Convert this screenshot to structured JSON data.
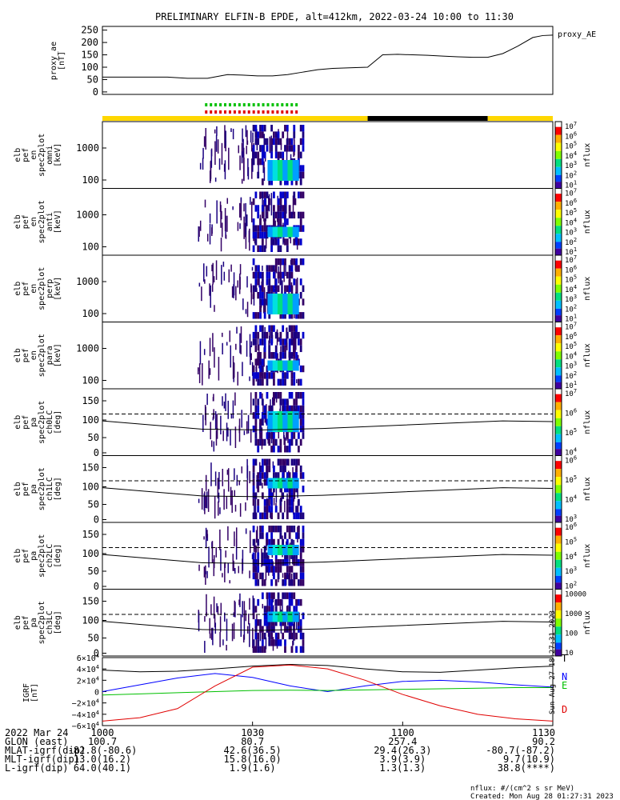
{
  "title": "PRELIMINARY ELFIN-B EPDE, alt=412km, 2022-03-24 10:00 to 11:30",
  "colors": {
    "black": "#000000",
    "blue": "#0000ff",
    "green": "#00c000",
    "red": "#e00000",
    "yellow": "#ffd700",
    "orbit_black": "#000000"
  },
  "time_axis": {
    "tick_labels": [
      "1000",
      "1030",
      "1100",
      "1130"
    ],
    "start_min": 0,
    "end_min": 90
  },
  "proxy_ae": {
    "ylabel": "proxy_ae\n[nT]",
    "legend": "proxy_AE",
    "yticks": [
      "250",
      "200",
      "150",
      "100",
      "50",
      "0"
    ],
    "ylim": [
      -10,
      265
    ]
  },
  "orbit_bar": {
    "segments": [
      {
        "start": 0,
        "end": 53,
        "color": "yellow"
      },
      {
        "start": 53,
        "end": 77,
        "color": "black"
      },
      {
        "start": 77,
        "end": 90,
        "color": "yellow"
      }
    ],
    "marker_start": 20.5,
    "marker_end": 39.5
  },
  "spectrogram_panels": [
    {
      "id": "p1",
      "label": "elb\npef\nen\nspec2plot\nomni\n[keV]",
      "yticks": [
        "1000",
        "100"
      ],
      "cbar_ticks": [
        "10^7",
        "10^6",
        "10^5",
        "10^4",
        "10^3",
        "10^2",
        "10^1"
      ],
      "cbar_label": "nflux"
    },
    {
      "id": "p2",
      "label": "elb\npef\nen\nspec2plot\nanti\n[keV]",
      "yticks": [
        "1000",
        "100"
      ],
      "cbar_ticks": [
        "10^7",
        "10^6",
        "10^5",
        "10^4",
        "10^3",
        "10^2",
        "10^1"
      ],
      "cbar_label": "nflux"
    },
    {
      "id": "p3",
      "label": "elb\npef\nen\nspec2plot\nperp\n[keV]",
      "yticks": [
        "1000",
        "100"
      ],
      "cbar_ticks": [
        "10^7",
        "10^6",
        "10^5",
        "10^4",
        "10^3",
        "10^2",
        "10^1"
      ],
      "cbar_label": "nflux"
    },
    {
      "id": "p4",
      "label": "elb\npef\nen\nspec2plot\npara\n[keV]",
      "yticks": [
        "1000",
        "100"
      ],
      "cbar_ticks": [
        "10^7",
        "10^6",
        "10^5",
        "10^4",
        "10^3",
        "10^2",
        "10^1"
      ],
      "cbar_label": "nflux"
    }
  ],
  "pitch_panels": [
    {
      "id": "a0",
      "label": "elb\npef\npa\nspec2plot\nch0LC\n[deg]",
      "yticks": [
        "150",
        "100",
        "50",
        "0"
      ],
      "cbar_ticks": [
        "10^7",
        "10^6",
        "10^5",
        "10^4"
      ],
      "cbar_label": "nflux"
    },
    {
      "id": "a1",
      "label": "elb\npef\npa\nspec2plot\nch1LC\n[deg]",
      "yticks": [
        "150",
        "100",
        "50",
        "0"
      ],
      "cbar_ticks": [
        "10^6",
        "10^5",
        "10^4",
        "10^3"
      ],
      "cbar_label": "nflux"
    },
    {
      "id": "a2",
      "label": "elb\npef\npa\nspec2plot\nch2LC\n[deg]",
      "yticks": [
        "150",
        "100",
        "50",
        "0"
      ],
      "cbar_ticks": [
        "10^6",
        "10^5",
        "10^4",
        "10^3",
        "10^2"
      ],
      "cbar_label": "nflux"
    },
    {
      "id": "a3",
      "label": "elb\npef\npa\nspec2plot\nch3LC\n[deg]",
      "yticks": [
        "150",
        "100",
        "50",
        "0"
      ],
      "cbar_ticks": [
        "10000",
        "1000",
        "100",
        "10"
      ],
      "cbar_label": "nflux"
    }
  ],
  "igrf": {
    "ylabel": "IGRF\n[nT]",
    "yticks": [
      "6×10^4",
      "4×10^4",
      "2×10^4",
      "0",
      "−2×10^4",
      "−4×10^4",
      "−6×10^4"
    ],
    "legend": [
      "T",
      "N",
      "E",
      "D"
    ],
    "side_text": "Sun Aug 27 18:27:31 2023"
  },
  "chart_data": [
    {
      "type": "line",
      "ylabel": "proxy_ae [nT]",
      "series": [
        {
          "name": "proxy_AE",
          "x": [
            0,
            5,
            10,
            13,
            17,
            21,
            25,
            28,
            31,
            34,
            37,
            40,
            43,
            46,
            50,
            53,
            56,
            59,
            62,
            65,
            68,
            71,
            74,
            77,
            80,
            83,
            86,
            88,
            90
          ],
          "values": [
            60,
            60,
            60,
            60,
            55,
            55,
            70,
            68,
            65,
            65,
            70,
            80,
            90,
            95,
            98,
            100,
            150,
            152,
            150,
            148,
            145,
            142,
            140,
            140,
            155,
            185,
            220,
            228,
            230
          ]
        }
      ],
      "ylim": [
        -10,
        265
      ]
    },
    {
      "type": "line",
      "ylabel": "IGRF [nT]",
      "x": [
        0,
        7.5,
        15,
        22.5,
        30,
        37.5,
        45,
        52.5,
        60,
        67.5,
        75,
        82.5,
        90
      ],
      "series": [
        {
          "name": "T",
          "values": [
            38000,
            35000,
            36000,
            40000,
            45000,
            48000,
            46000,
            40000,
            35000,
            34000,
            38000,
            42000,
            45000
          ]
        },
        {
          "name": "N",
          "values": [
            0,
            12000,
            24000,
            32000,
            25000,
            10000,
            0,
            10000,
            18000,
            20000,
            17000,
            12000,
            8000
          ]
        },
        {
          "name": "E",
          "values": [
            -6000,
            -4000,
            -2000,
            0,
            2000,
            2500,
            2000,
            3000,
            4000,
            5000,
            6000,
            7000,
            7000
          ]
        },
        {
          "name": "D",
          "values": [
            -52000,
            -46000,
            -30000,
            10000,
            43000,
            47000,
            40000,
            20000,
            -5000,
            -25000,
            -40000,
            -48000,
            -52000
          ]
        }
      ],
      "ylim": [
        -60000,
        60000
      ]
    }
  ],
  "ephemeris": {
    "rows": [
      {
        "label": "2022 Mar 24",
        "values": [
          "1000",
          "1030",
          "1100",
          "1130"
        ]
      },
      {
        "label": "GLON (east)",
        "values": [
          "100.7",
          "80.7",
          "257.4",
          "90.2"
        ]
      },
      {
        "label": "MLAT-igrf(dip)",
        "values": [
          "-82.8(-80.6)",
          "42.6(36.5)",
          "29.4(26.3)",
          "-80.7(-87.2)"
        ]
      },
      {
        "label": "MLT-igrf(dip)",
        "values": [
          "13.0(16.2)",
          "15.8(16.0)",
          "3.9(3.9)",
          "9.7(10.9)"
        ]
      },
      {
        "label": "L-igrf(dip)",
        "values": [
          "64.0(40.1)",
          "1.9(1.6)",
          "1.3(1.3)",
          "38.8(****)"
        ]
      }
    ]
  },
  "footer": {
    "units": "nflux: #/(cm^2 s sr MeV)",
    "created": "Created: Mon Aug 28 01:27:31 2023"
  }
}
